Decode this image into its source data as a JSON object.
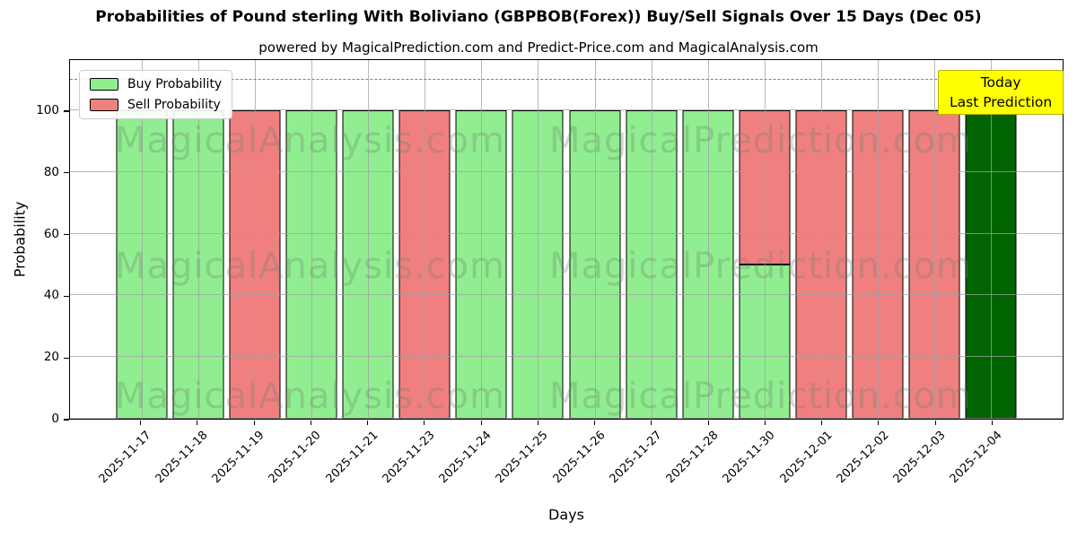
{
  "page": {
    "window_title": "Probabilities chart"
  },
  "legend": {
    "items": [
      {
        "label": "Buy Probability",
        "color": "#90EE90"
      },
      {
        "label": "Sell Probability",
        "color": "#F08080"
      }
    ]
  },
  "annotation": {
    "line1": "Today",
    "line2": "Last Prediction",
    "bg_color": "#FFFF00"
  },
  "watermarks": {
    "left": "MagicalAnalysis.com",
    "right": "MagicalPrediction.com"
  },
  "chart_data": {
    "type": "bar",
    "stacked": true,
    "title": "Probabilities of Pound sterling With Boliviano (GBPBOB(Forex)) Buy/Sell Signals Over 15 Days (Dec 05)",
    "subtitle": "powered by MagicalPrediction.com and Predict-Price.com and MagicalAnalysis.com",
    "xlabel": "Days",
    "ylabel": "Probability",
    "ylim": [
      0,
      117
    ],
    "yticks": [
      0,
      20,
      40,
      60,
      80,
      100
    ],
    "dashed_guide_y": 110,
    "grid": true,
    "legend_position": "upper left",
    "categories": [
      "2025-11-17",
      "2025-11-18",
      "2025-11-19",
      "2025-11-20",
      "2025-11-21",
      "2025-11-23",
      "2025-11-24",
      "2025-11-25",
      "2025-11-26",
      "2025-11-27",
      "2025-11-28",
      "2025-11-30",
      "2025-12-01",
      "2025-12-02",
      "2025-12-03",
      "2025-12-04"
    ],
    "series": [
      {
        "name": "Buy Probability",
        "color": "#90EE90",
        "values": [
          100,
          100,
          0,
          100,
          100,
          0,
          100,
          100,
          100,
          100,
          100,
          50,
          0,
          0,
          0,
          0
        ]
      },
      {
        "name": "Sell Probability",
        "color": "#F08080",
        "values": [
          0,
          0,
          100,
          0,
          0,
          100,
          0,
          0,
          0,
          0,
          0,
          50,
          100,
          100,
          100,
          0
        ]
      },
      {
        "name": "Today Last Prediction",
        "color": "#006400",
        "values": [
          0,
          0,
          0,
          0,
          0,
          0,
          0,
          0,
          0,
          0,
          0,
          0,
          0,
          0,
          0,
          100
        ]
      }
    ]
  }
}
